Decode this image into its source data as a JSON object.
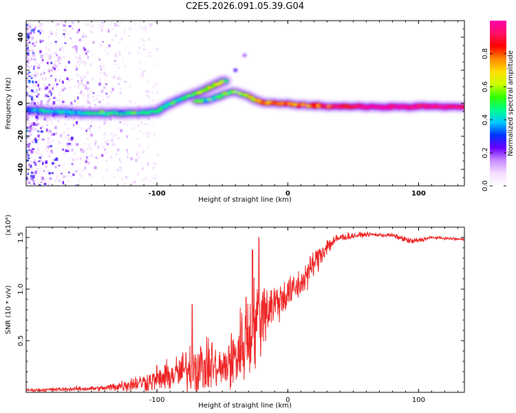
{
  "title": "C2E5.2026.091.05.39.G04",
  "chart_data": [
    {
      "type": "heatmap",
      "name": "spectrogram",
      "xlabel": "Height of straight line (km)",
      "ylabel": "Frequency (Hz)",
      "xlim": [
        -200,
        135
      ],
      "ylim": [
        -50,
        50
      ],
      "x_ticks": [
        -100,
        0,
        100
      ],
      "y_ticks": [
        40,
        20,
        0,
        -20,
        -40
      ],
      "main_trace": [
        {
          "x": -198,
          "y": -4.5,
          "a": 0.35
        },
        {
          "x": -185,
          "y": -5.0,
          "a": 0.4
        },
        {
          "x": -170,
          "y": -5.5,
          "a": 0.45
        },
        {
          "x": -155,
          "y": -6.0,
          "a": 0.45
        },
        {
          "x": -140,
          "y": -6.0,
          "a": 0.45
        },
        {
          "x": -125,
          "y": -6.0,
          "a": 0.45
        },
        {
          "x": -112,
          "y": -6.0,
          "a": 0.45
        },
        {
          "x": -100,
          "y": -5.0,
          "a": 0.45
        },
        {
          "x": -92,
          "y": -1.0,
          "a": 0.45
        },
        {
          "x": -85,
          "y": 1.5,
          "a": 0.45
        },
        {
          "x": -77,
          "y": 4.0,
          "a": 0.45
        },
        {
          "x": -70,
          "y": 6.0,
          "a": 0.5
        },
        {
          "x": -63,
          "y": 8.5,
          "a": 0.55
        },
        {
          "x": -56,
          "y": 11.0,
          "a": 0.55
        },
        {
          "x": -50,
          "y": 13.0,
          "a": 0.55
        },
        {
          "x": -47,
          "y": 14.0,
          "a": 0.5
        }
      ],
      "lower_branch": [
        {
          "x": -70,
          "y": 1.0,
          "a": 0.5
        },
        {
          "x": -58,
          "y": 2.5,
          "a": 0.5
        },
        {
          "x": -48,
          "y": 6.0,
          "a": 0.5
        },
        {
          "x": -40,
          "y": 7.0,
          "a": 0.5
        },
        {
          "x": -32,
          "y": 5.0,
          "a": 0.6
        },
        {
          "x": -25,
          "y": 2.0,
          "a": 0.7
        },
        {
          "x": -18,
          "y": 0.5,
          "a": 0.78
        },
        {
          "x": -10,
          "y": 0.0,
          "a": 0.8
        },
        {
          "x": -2,
          "y": 0.0,
          "a": 0.82
        },
        {
          "x": 8,
          "y": -1.0,
          "a": 0.8
        },
        {
          "x": 20,
          "y": -1.5,
          "a": 0.8
        },
        {
          "x": 40,
          "y": -2.0,
          "a": 0.9
        },
        {
          "x": 60,
          "y": -2.0,
          "a": 0.93
        },
        {
          "x": 80,
          "y": -2.0,
          "a": 0.95
        },
        {
          "x": 100,
          "y": -2.0,
          "a": 0.95
        },
        {
          "x": 120,
          "y": -2.0,
          "a": 0.95
        },
        {
          "x": 135,
          "y": -2.0,
          "a": 0.95
        }
      ],
      "harmonic_trace": [
        {
          "x": -40,
          "y": 20,
          "a": 0.25
        },
        {
          "x": -33,
          "y": 29,
          "a": 0.18
        }
      ],
      "colorbar": {
        "label": "Normalized spectral amplitude",
        "range": [
          0,
          1
        ],
        "ticks": [
          "0.0",
          "0.2",
          "0.4",
          "0.6",
          "0.8"
        ],
        "tick_values": [
          0,
          0.2,
          0.4,
          0.6,
          0.8
        ],
        "colors": [
          "#ffffff",
          "#f4ddff",
          "#c98cff",
          "#6a00ff",
          "#0033ff",
          "#00ccff",
          "#00ff88",
          "#33ff00",
          "#ccff00",
          "#ffdd00",
          "#ff8800",
          "#ff0000",
          "#ff1166",
          "#ff00aa"
        ]
      }
    },
    {
      "type": "line",
      "name": "snr",
      "xlabel": "Height of straight line (km)",
      "ylabel": "SNR (10 * v/v)",
      "y_scale_label": "(x10⁴)",
      "xlim": [
        -200,
        135
      ],
      "ylim": [
        0,
        1.6
      ],
      "x_ticks": [
        -100,
        0,
        100
      ],
      "y_ticks": [
        1.5,
        1.0,
        0.5
      ],
      "y_tick_labels": [
        "1.5",
        "1.0",
        "0.5"
      ],
      "series_color": "#ee2222",
      "envelope": [
        {
          "x": -200,
          "y": 0.02,
          "v": 0.02
        },
        {
          "x": -170,
          "y": 0.03,
          "v": 0.03
        },
        {
          "x": -140,
          "y": 0.04,
          "v": 0.04
        },
        {
          "x": -130,
          "y": 0.06,
          "v": 0.08
        },
        {
          "x": -115,
          "y": 0.09,
          "v": 0.12
        },
        {
          "x": -100,
          "y": 0.12,
          "v": 0.16
        },
        {
          "x": -90,
          "y": 0.16,
          "v": 0.22
        },
        {
          "x": -80,
          "y": 0.2,
          "v": 0.3
        },
        {
          "x": -70,
          "y": 0.26,
          "v": 0.42
        },
        {
          "x": -60,
          "y": 0.24,
          "v": 0.32
        },
        {
          "x": -50,
          "y": 0.22,
          "v": 0.3
        },
        {
          "x": -42,
          "y": 0.3,
          "v": 0.45
        },
        {
          "x": -35,
          "y": 0.45,
          "v": 0.6
        },
        {
          "x": -28,
          "y": 0.6,
          "v": 0.7
        },
        {
          "x": -22,
          "y": 0.72,
          "v": 0.55
        },
        {
          "x": -15,
          "y": 0.82,
          "v": 0.4
        },
        {
          "x": -8,
          "y": 0.88,
          "v": 0.3
        },
        {
          "x": 0,
          "y": 0.95,
          "v": 0.24
        },
        {
          "x": 10,
          "y": 1.05,
          "v": 0.22
        },
        {
          "x": 20,
          "y": 1.25,
          "v": 0.2
        },
        {
          "x": 30,
          "y": 1.42,
          "v": 0.14
        },
        {
          "x": 40,
          "y": 1.5,
          "v": 0.06
        },
        {
          "x": 60,
          "y": 1.53,
          "v": 0.03
        },
        {
          "x": 80,
          "y": 1.52,
          "v": 0.03
        },
        {
          "x": 95,
          "y": 1.46,
          "v": 0.05
        },
        {
          "x": 110,
          "y": 1.5,
          "v": 0.02
        },
        {
          "x": 135,
          "y": 1.48,
          "v": 0.02
        }
      ],
      "spikes": [
        {
          "x": -100,
          "y": 0.26
        },
        {
          "x": -73,
          "y": 0.85
        },
        {
          "x": -58,
          "y": 0.48
        },
        {
          "x": -45,
          "y": 0.45
        },
        {
          "x": -32,
          "y": 0.92
        },
        {
          "x": -27,
          "y": 1.38
        },
        {
          "x": -22,
          "y": 1.5
        },
        {
          "x": -18,
          "y": 1.0
        },
        {
          "x": 0,
          "y": 1.05
        }
      ]
    }
  ]
}
